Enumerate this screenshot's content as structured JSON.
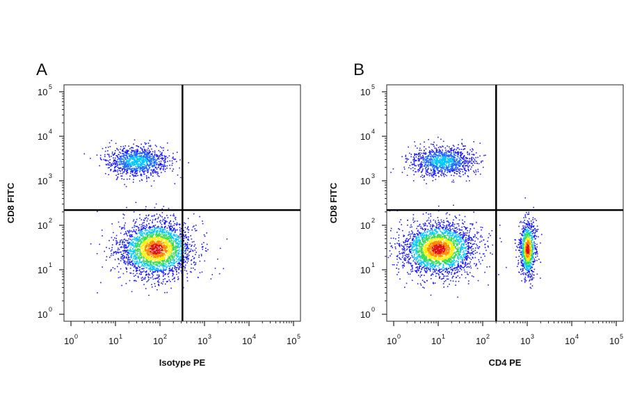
{
  "chart_data": [
    {
      "type": "scatter",
      "panel": "A",
      "xlabel": "Isotype PE",
      "ylabel": "CD8 FITC",
      "x_scale": "log",
      "y_scale": "log",
      "xlim": [
        1,
        100000
      ],
      "ylim": [
        1,
        100000
      ],
      "x_ticks": [
        {
          "base": "10",
          "exp": "0",
          "value": 1
        },
        {
          "base": "10",
          "exp": "1",
          "value": 10
        },
        {
          "base": "10",
          "exp": "2",
          "value": 100
        },
        {
          "base": "10",
          "exp": "3",
          "value": 1000
        },
        {
          "base": "10",
          "exp": "4",
          "value": 10000
        },
        {
          "base": "10",
          "exp": "5",
          "value": 100000
        }
      ],
      "y_ticks": [
        {
          "base": "10",
          "exp": "0",
          "value": 1
        },
        {
          "base": "10",
          "exp": "1",
          "value": 10
        },
        {
          "base": "10",
          "exp": "2",
          "value": 100
        },
        {
          "base": "10",
          "exp": "3",
          "value": 1000
        },
        {
          "base": "10",
          "exp": "4",
          "value": 10000
        },
        {
          "base": "10",
          "exp": "5",
          "value": 100000
        }
      ],
      "gates": {
        "x": 320,
        "y": 220
      },
      "populations": [
        {
          "center": [
            80,
            30
          ],
          "spread_log10": [
            0.42,
            0.32
          ]
        },
        {
          "center": [
            30,
            2800
          ],
          "spread_log10": [
            0.35,
            0.16
          ]
        }
      ],
      "density_colors": [
        "#1a1aff",
        "#00c8ff",
        "#33dd55",
        "#ffee00",
        "#ff8800",
        "#e01010"
      ]
    },
    {
      "type": "scatter",
      "panel": "B",
      "xlabel": "CD4 PE",
      "ylabel": "CD8 FITC",
      "x_scale": "log",
      "y_scale": "log",
      "xlim": [
        1,
        100000
      ],
      "ylim": [
        1,
        100000
      ],
      "x_ticks": [
        {
          "base": "10",
          "exp": "0",
          "value": 1
        },
        {
          "base": "10",
          "exp": "1",
          "value": 10
        },
        {
          "base": "10",
          "exp": "2",
          "value": 100
        },
        {
          "base": "10",
          "exp": "3",
          "value": 1000
        },
        {
          "base": "10",
          "exp": "4",
          "value": 10000
        },
        {
          "base": "10",
          "exp": "5",
          "value": 100000
        }
      ],
      "y_ticks": [
        {
          "base": "10",
          "exp": "0",
          "value": 1
        },
        {
          "base": "10",
          "exp": "1",
          "value": 10
        },
        {
          "base": "10",
          "exp": "2",
          "value": 100
        },
        {
          "base": "10",
          "exp": "3",
          "value": 1000
        },
        {
          "base": "10",
          "exp": "4",
          "value": 10000
        },
        {
          "base": "10",
          "exp": "5",
          "value": 100000
        }
      ],
      "gates": {
        "x": 200,
        "y": 220
      },
      "populations": [
        {
          "center": [
            10,
            30
          ],
          "spread_log10": [
            0.42,
            0.3
          ]
        },
        {
          "center": [
            12,
            2800
          ],
          "spread_log10": [
            0.35,
            0.16
          ]
        },
        {
          "center": [
            1000,
            30
          ],
          "spread_log10": [
            0.09,
            0.32
          ]
        }
      ],
      "density_colors": [
        "#1a1aff",
        "#00c8ff",
        "#33dd55",
        "#ffee00",
        "#ff8800",
        "#e01010"
      ]
    }
  ]
}
